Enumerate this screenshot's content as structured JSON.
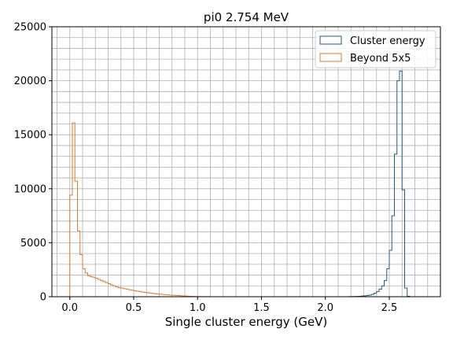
{
  "chart_data": {
    "type": "histogram",
    "title": "pi0 2.754 MeV",
    "xlabel": "Single cluster energy (GeV)",
    "ylabel": "",
    "xlim": [
      -0.14,
      2.9
    ],
    "ylim": [
      0,
      25000
    ],
    "xticks": [
      0.0,
      0.5,
      1.0,
      1.5,
      2.0,
      2.5
    ],
    "xtick_labels": [
      "0.0",
      "0.5",
      "1.0",
      "1.5",
      "2.0",
      "2.5"
    ],
    "yticks": [
      0,
      5000,
      10000,
      15000,
      20000,
      25000
    ],
    "ytick_labels": [
      "0",
      "5000",
      "10000",
      "15000",
      "20000",
      "25000"
    ],
    "minor_x_step": 0.1,
    "minor_y_step": 1000,
    "grid": true,
    "legend_position": "top-right",
    "bin_width": 0.02,
    "series": [
      {
        "name": "Cluster energy",
        "color": "#1f5f80",
        "x_start": 2.18,
        "values": [
          10,
          15,
          20,
          30,
          40,
          60,
          80,
          110,
          150,
          220,
          320,
          480,
          700,
          1000,
          1500,
          2600,
          4300,
          7500,
          13200,
          20000,
          20900,
          9900,
          800,
          50
        ]
      },
      {
        "name": "Beyond 5x5",
        "color": "#e07b2c",
        "x_start": 0.0,
        "values": [
          9400,
          16100,
          10700,
          6100,
          3900,
          2600,
          2200,
          1950,
          1850,
          1800,
          1700,
          1600,
          1500,
          1400,
          1300,
          1200,
          1100,
          1000,
          900,
          850,
          800,
          750,
          700,
          650,
          600,
          560,
          520,
          480,
          440,
          400,
          370,
          340,
          310,
          280,
          250,
          230,
          210,
          190,
          170,
          150,
          135,
          120,
          105,
          90,
          75,
          60,
          50,
          40,
          30,
          20,
          15,
          10,
          8,
          6,
          5,
          4,
          3,
          2,
          1,
          1
        ]
      }
    ]
  }
}
